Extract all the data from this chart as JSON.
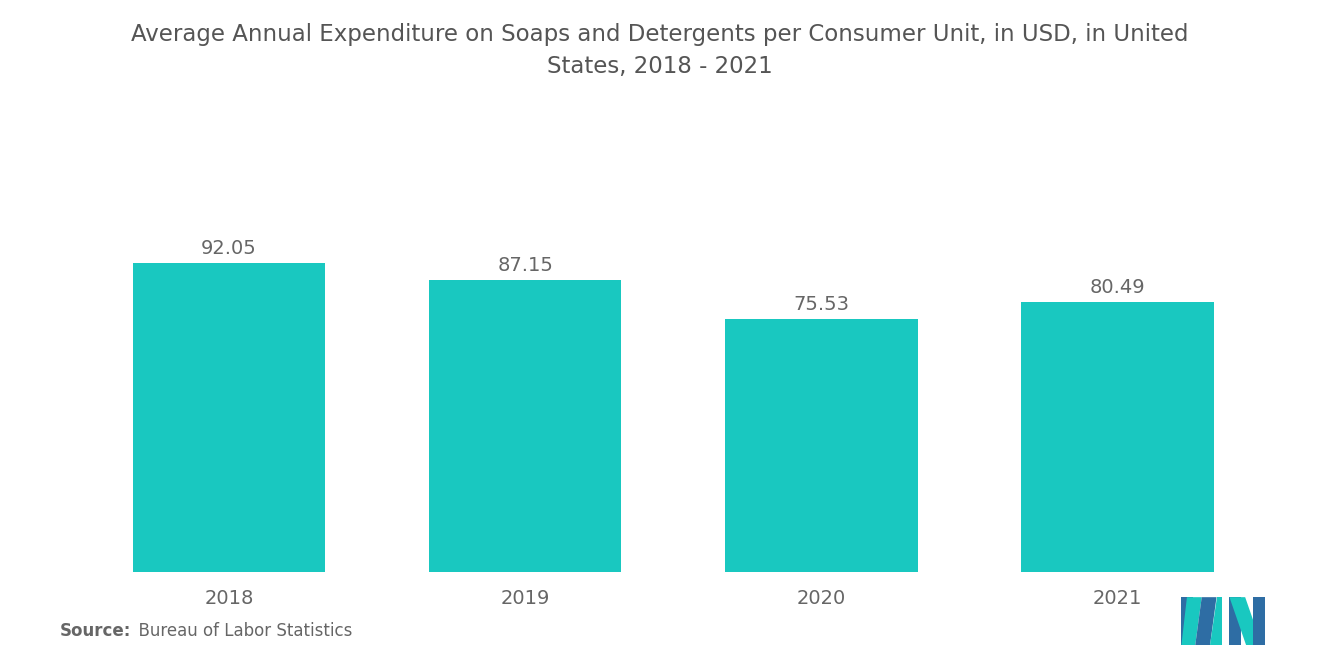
{
  "title_line1": "Average Annual Expenditure on Soaps and Detergents per Consumer Unit, in USD, in United",
  "title_line2": "States, 2018 - 2021",
  "categories": [
    "2018",
    "2019",
    "2020",
    "2021"
  ],
  "values": [
    92.05,
    87.15,
    75.53,
    80.49
  ],
  "bar_color": "#19C8C0",
  "background_color": "#FFFFFF",
  "title_color": "#555555",
  "label_color": "#666666",
  "value_color": "#666666",
  "source_bold": "Source:",
  "source_normal": "  Bureau of Labor Statistics",
  "ylim": [
    0,
    115
  ],
  "title_fontsize": 16.5,
  "label_fontsize": 14,
  "value_fontsize": 14,
  "source_fontsize": 12,
  "bar_width": 0.65,
  "logo_blue": "#2E6DA4",
  "logo_teal": "#19C8C0"
}
